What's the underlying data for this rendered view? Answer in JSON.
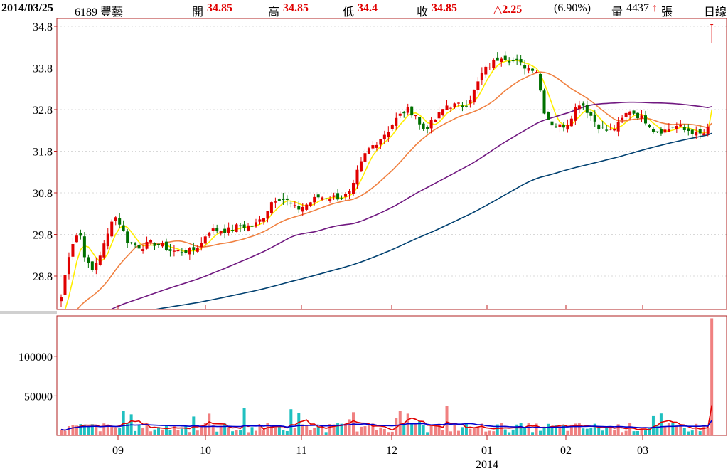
{
  "header": {
    "date": "2014/03/25",
    "stock": "6189 豐藝",
    "open_label": "開",
    "open_value": "34.85",
    "high_label": "高",
    "high_value": "34.85",
    "low_label": "低",
    "low_value": "34.4",
    "close_label": "收",
    "close_value": "34.85",
    "change": "△2.25",
    "change_pct": "(6.90%)",
    "volume_label": "量",
    "volume_value": "4437",
    "arrow": "↑",
    "unit": "張",
    "period": "日線"
  },
  "colors": {
    "up": "#e00000",
    "down": "#007000",
    "ma1": "#ffee00",
    "ma2": "#f08040",
    "ma3": "#701880",
    "ma4": "#004070",
    "vol_up": "#f08080",
    "vol_down": "#20c0c0",
    "vol_ma1": "#e00000",
    "vol_ma2": "#0000d0",
    "frame": "#b02020",
    "tick": "#c02020"
  },
  "chart_data": [
    {
      "type": "candlestick",
      "ylim": [
        28.0,
        35.0
      ],
      "yticks": [
        "28.8",
        "29.8",
        "30.8",
        "31.8",
        "32.8",
        "33.8",
        "34.8"
      ],
      "xticks": [
        "09",
        "10",
        "11",
        "12",
        "01",
        "02",
        "03"
      ],
      "xtick_sub": {
        "under": "01",
        "label": "2014"
      },
      "last_candle": {
        "open": 34.85,
        "high": 34.85,
        "low": 34.4,
        "close": 34.85
      }
    },
    {
      "type": "bar",
      "title": "volume",
      "ylim": [
        0,
        150000
      ],
      "yticks": [
        "50000",
        "100000"
      ]
    }
  ]
}
